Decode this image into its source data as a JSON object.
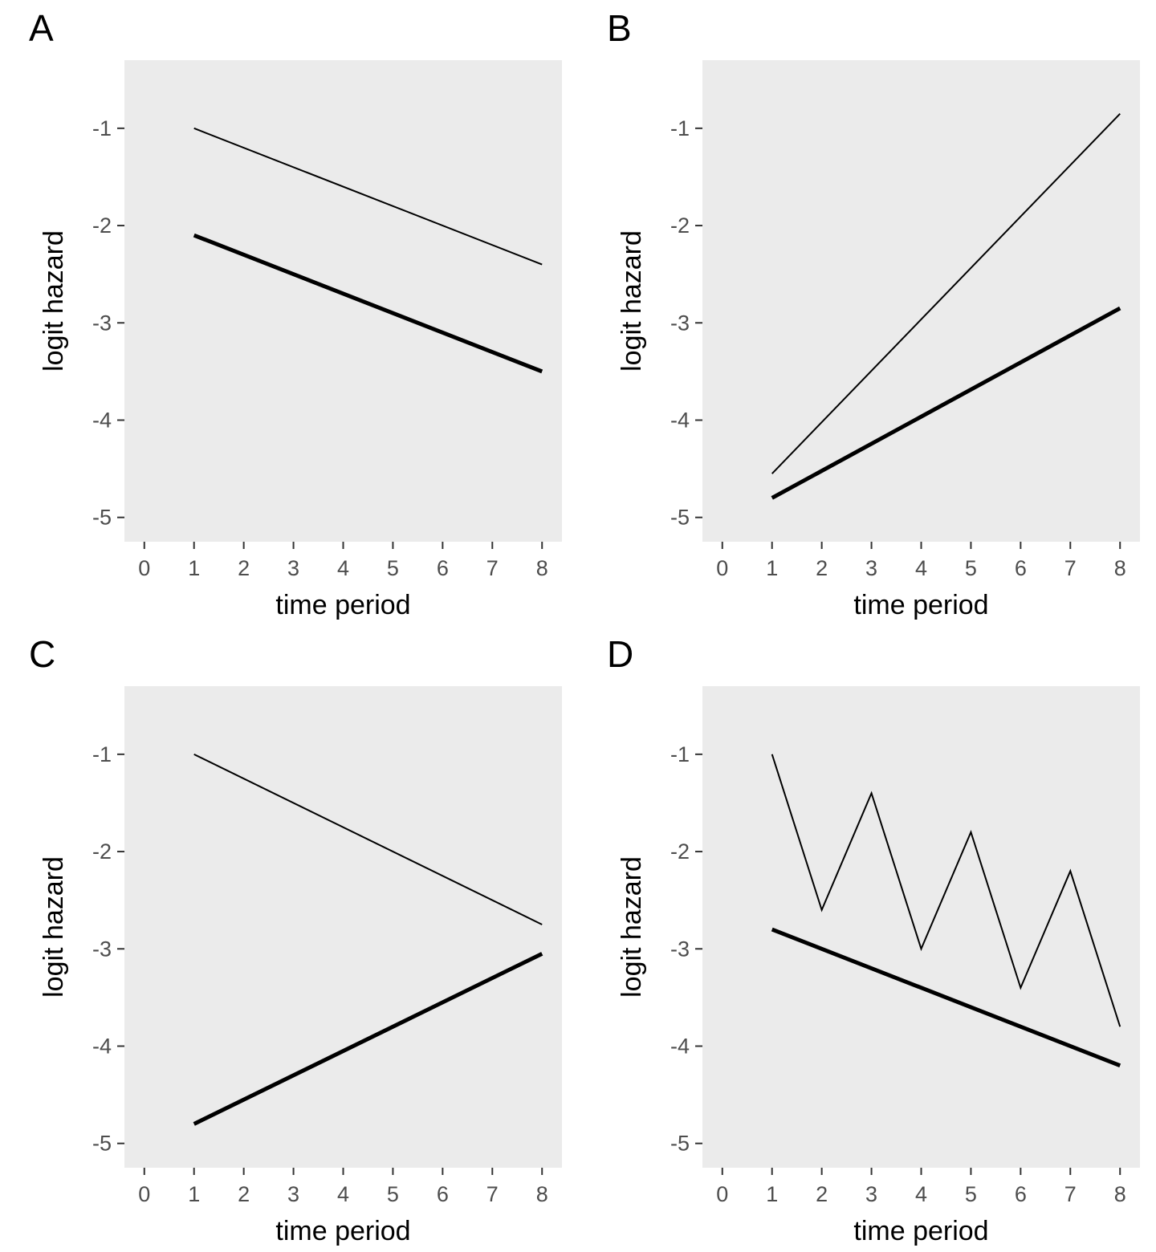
{
  "style": {
    "panel_bg": "#EBEBEB",
    "tick_label_color": "#4D4D4D",
    "axis_title_color": "#000000",
    "tick_mark_color": "#333333",
    "line_color": "#000000",
    "page_bg": "#FFFFFF"
  },
  "chart_data": [
    {
      "type": "line",
      "label": "A",
      "xlabel": "time period",
      "ylabel": "logit hazard",
      "xlim": [
        -0.4,
        8.4
      ],
      "ylim": [
        -5.25,
        -0.3
      ],
      "xticks": [
        0,
        1,
        2,
        3,
        4,
        5,
        6,
        7,
        8
      ],
      "yticks": [
        -5,
        -4,
        -3,
        -2,
        -1
      ],
      "grid": false,
      "legend": "none",
      "series": [
        {
          "name": "thin-line",
          "linewidth": 2,
          "points": [
            [
              1,
              -1.0
            ],
            [
              8,
              -2.4
            ]
          ]
        },
        {
          "name": "thick-line",
          "linewidth": 5,
          "points": [
            [
              1,
              -2.1
            ],
            [
              8,
              -3.5
            ]
          ]
        }
      ]
    },
    {
      "type": "line",
      "label": "B",
      "xlabel": "time period",
      "ylabel": "logit hazard",
      "xlim": [
        -0.4,
        8.4
      ],
      "ylim": [
        -5.25,
        -0.3
      ],
      "xticks": [
        0,
        1,
        2,
        3,
        4,
        5,
        6,
        7,
        8
      ],
      "yticks": [
        -5,
        -4,
        -3,
        -2,
        -1
      ],
      "grid": false,
      "legend": "none",
      "series": [
        {
          "name": "thin-line",
          "linewidth": 2,
          "points": [
            [
              1,
              -4.55
            ],
            [
              8,
              -0.85
            ]
          ]
        },
        {
          "name": "thick-line",
          "linewidth": 5,
          "points": [
            [
              1,
              -4.8
            ],
            [
              8,
              -2.85
            ]
          ]
        }
      ]
    },
    {
      "type": "line",
      "label": "C",
      "xlabel": "time period",
      "ylabel": "logit hazard",
      "xlim": [
        -0.4,
        8.4
      ],
      "ylim": [
        -5.25,
        -0.3
      ],
      "xticks": [
        0,
        1,
        2,
        3,
        4,
        5,
        6,
        7,
        8
      ],
      "yticks": [
        -5,
        -4,
        -3,
        -2,
        -1
      ],
      "grid": false,
      "legend": "none",
      "series": [
        {
          "name": "thin-line",
          "linewidth": 2,
          "points": [
            [
              1,
              -1.0
            ],
            [
              8,
              -2.75
            ]
          ]
        },
        {
          "name": "thick-line",
          "linewidth": 5,
          "points": [
            [
              1,
              -4.8
            ],
            [
              8,
              -3.05
            ]
          ]
        }
      ]
    },
    {
      "type": "line",
      "label": "D",
      "xlabel": "time period",
      "ylabel": "logit hazard",
      "xlim": [
        -0.4,
        8.4
      ],
      "ylim": [
        -5.25,
        -0.3
      ],
      "xticks": [
        0,
        1,
        2,
        3,
        4,
        5,
        6,
        7,
        8
      ],
      "yticks": [
        -5,
        -4,
        -3,
        -2,
        -1
      ],
      "grid": false,
      "legend": "none",
      "series": [
        {
          "name": "thin-line",
          "linewidth": 2,
          "points": [
            [
              1,
              -1.0
            ],
            [
              2,
              -2.6
            ],
            [
              3,
              -1.4
            ],
            [
              4,
              -3.0
            ],
            [
              5,
              -1.8
            ],
            [
              6,
              -3.4
            ],
            [
              7,
              -2.2
            ],
            [
              8,
              -3.8
            ]
          ]
        },
        {
          "name": "thick-line",
          "linewidth": 5,
          "points": [
            [
              1,
              -2.8
            ],
            [
              8,
              -4.2
            ]
          ]
        }
      ]
    }
  ]
}
